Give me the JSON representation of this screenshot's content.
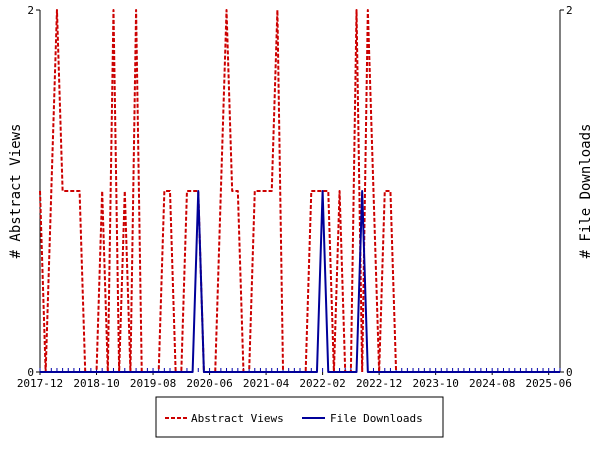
{
  "chart_data": {
    "type": "line",
    "y_left_label": "# Abstract Views",
    "y_right_label": "# File Downloads",
    "x_tick_labels": [
      "2017-12",
      "2018-10",
      "2019-08",
      "2020-06",
      "2021-04",
      "2022-02",
      "2022-12",
      "2023-10",
      "2024-08",
      "2025-06"
    ],
    "x_range": [
      "2017-12",
      "2025-08"
    ],
    "y_left_range": [
      0,
      2
    ],
    "y_right_range": [
      0,
      2
    ],
    "y_left_ticks": [
      "0",
      "2"
    ],
    "y_right_ticks": [
      "0",
      "2"
    ],
    "legend_position": "bottom",
    "series": [
      {
        "name": "Abstract Views",
        "color": "#cc0000",
        "style": "dashed",
        "axis": "left",
        "points": [
          [
            "2017-12",
            1
          ],
          [
            "2018-01",
            0
          ],
          [
            "2018-02",
            1
          ],
          [
            "2018-03",
            2
          ],
          [
            "2018-04",
            1
          ],
          [
            "2018-05",
            1
          ],
          [
            "2018-06",
            1
          ],
          [
            "2018-07",
            1
          ],
          [
            "2018-08",
            0
          ],
          [
            "2018-09",
            0
          ],
          [
            "2018-10",
            0
          ],
          [
            "2018-11",
            1
          ],
          [
            "2018-12",
            0
          ],
          [
            "2019-01",
            2
          ],
          [
            "2019-02",
            0
          ],
          [
            "2019-03",
            1
          ],
          [
            "2019-04",
            0
          ],
          [
            "2019-05",
            2
          ],
          [
            "2019-06",
            0
          ],
          [
            "2019-07",
            0
          ],
          [
            "2019-08",
            0
          ],
          [
            "2019-09",
            0
          ],
          [
            "2019-10",
            1
          ],
          [
            "2019-11",
            1
          ],
          [
            "2019-12",
            0
          ],
          [
            "2020-01",
            0
          ],
          [
            "2020-02",
            1
          ],
          [
            "2020-03",
            1
          ],
          [
            "2020-04",
            1
          ],
          [
            "2020-05",
            0
          ],
          [
            "2020-06",
            0
          ],
          [
            "2020-07",
            0
          ],
          [
            "2020-08",
            1
          ],
          [
            "2020-09",
            2
          ],
          [
            "2020-10",
            1
          ],
          [
            "2020-11",
            1
          ],
          [
            "2020-12",
            0
          ],
          [
            "2021-01",
            0
          ],
          [
            "2021-02",
            1
          ],
          [
            "2021-03",
            1
          ],
          [
            "2021-04",
            1
          ],
          [
            "2021-05",
            1
          ],
          [
            "2021-06",
            2
          ],
          [
            "2021-07",
            0
          ],
          [
            "2021-08",
            0
          ],
          [
            "2021-09",
            0
          ],
          [
            "2021-10",
            0
          ],
          [
            "2021-11",
            0
          ],
          [
            "2021-12",
            1
          ],
          [
            "2022-01",
            1
          ],
          [
            "2022-02",
            1
          ],
          [
            "2022-03",
            1
          ],
          [
            "2022-04",
            0
          ],
          [
            "2022-05",
            1
          ],
          [
            "2022-06",
            0
          ],
          [
            "2022-07",
            0
          ],
          [
            "2022-08",
            2
          ],
          [
            "2022-09",
            0
          ],
          [
            "2022-10",
            2
          ],
          [
            "2022-11",
            1
          ],
          [
            "2022-12",
            0
          ],
          [
            "2023-01",
            1
          ],
          [
            "2023-02",
            1
          ],
          [
            "2023-03",
            0
          ],
          [
            "2023-04",
            0
          ],
          [
            "2023-05",
            0
          ],
          [
            "2023-06",
            0
          ],
          [
            "2023-07",
            0
          ],
          [
            "2023-08",
            0
          ],
          [
            "2023-09",
            0
          ],
          [
            "2023-10",
            0
          ],
          [
            "2023-11",
            0
          ],
          [
            "2023-12",
            0
          ],
          [
            "2024-01",
            0
          ],
          [
            "2024-02",
            0
          ],
          [
            "2024-03",
            0
          ],
          [
            "2024-04",
            0
          ],
          [
            "2024-05",
            0
          ],
          [
            "2024-06",
            0
          ],
          [
            "2024-07",
            0
          ],
          [
            "2024-08",
            0
          ],
          [
            "2024-09",
            0
          ],
          [
            "2024-10",
            0
          ],
          [
            "2024-11",
            0
          ],
          [
            "2024-12",
            0
          ],
          [
            "2025-01",
            0
          ],
          [
            "2025-02",
            0
          ],
          [
            "2025-03",
            0
          ],
          [
            "2025-04",
            0
          ],
          [
            "2025-05",
            0
          ],
          [
            "2025-06",
            0
          ],
          [
            "2025-07",
            0
          ],
          [
            "2025-08",
            0
          ]
        ]
      },
      {
        "name": "File Downloads",
        "color": "#000099",
        "style": "solid",
        "axis": "right",
        "points": [
          [
            "2017-12",
            0
          ],
          [
            "2020-03",
            0
          ],
          [
            "2020-04",
            1
          ],
          [
            "2020-05",
            0
          ],
          [
            "2022-01",
            0
          ],
          [
            "2022-02",
            1
          ],
          [
            "2022-03",
            0
          ],
          [
            "2022-08",
            0
          ],
          [
            "2022-09",
            1
          ],
          [
            "2022-10",
            0
          ],
          [
            "2025-08",
            0
          ]
        ]
      }
    ]
  }
}
